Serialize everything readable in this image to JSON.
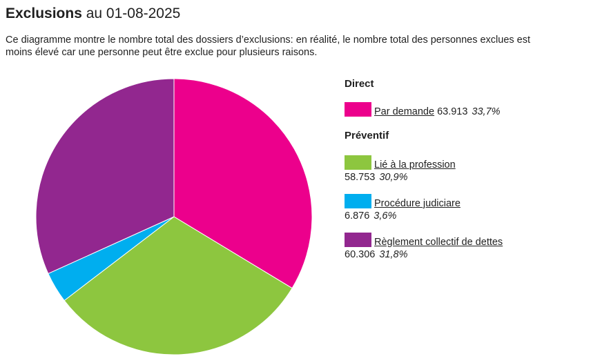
{
  "page": {
    "title_bold": "Exclusions",
    "title_rest": "au 01-08-2025",
    "subtitle": "Ce diagramme montre le nombre total des dossiers d’exclusions: en réalité, le nombre total des personnes exclues est moins élevé car une personne peut être exclue pour plusieurs raisons."
  },
  "legend": {
    "group_direct": "Direct",
    "group_preventif": "Préventif"
  },
  "chart_data": {
    "type": "pie",
    "title": "",
    "slices": [
      {
        "label": "Par demande",
        "group": "Direct",
        "value": 63913,
        "value_text": "63.913",
        "percent_text": "33,7%",
        "color": "#ec008c"
      },
      {
        "label": "Lié à la profession",
        "group": "Préventif",
        "value": 58753,
        "value_text": "58.753",
        "percent_text": "30,9%",
        "color": "#8dc63f"
      },
      {
        "label": "Procédure judiciare",
        "group": "Préventif",
        "value": 6876,
        "value_text": "6.876",
        "percent_text": "3,6%",
        "color": "#00aeef"
      },
      {
        "label": "Règlement collectif de dettes",
        "group": "Préventif",
        "value": 60306,
        "value_text": "60.306",
        "percent_text": "31,8%",
        "color": "#92278f"
      }
    ]
  }
}
